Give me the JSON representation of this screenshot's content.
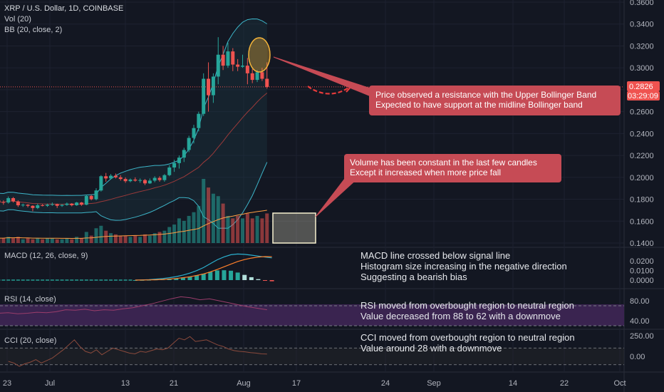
{
  "header": {
    "symbol_line": "XRP / U.S. Dollar, 1D, COINBASE",
    "vol_label": "Vol (20)",
    "bb_label": "BB (20, close, 2)"
  },
  "price_badges": {
    "last_price": "0.2826",
    "countdown": "03:29:09"
  },
  "colors": {
    "background": "#131722",
    "up": "#26a69a",
    "down": "#ef5350",
    "bb_band": "#3db5c9",
    "bb_basis": "#9b3a3a",
    "annotation_box": "#c64b55",
    "highlight_ellipse": "#f4b43a",
    "highlight_rect": "#f8f1d0",
    "macd_line": "#2bb0cf",
    "signal_line": "#ff7f2a",
    "rsi_line": "#9b3d6b",
    "rsi_band": "#3a2450",
    "cci_line": "#8b4a3c"
  },
  "annotations": {
    "resistance": {
      "line1": "Price observed a resistance with the Upper Bollinger Band",
      "line2": "Expected to have support at the midline Bollinger band"
    },
    "volume": {
      "line1": "Volume has been constant in the last few candles",
      "line2": "Except it increased when more price fall"
    }
  },
  "panes": {
    "macd": {
      "label": "MACD (12, 26, close, 9)",
      "note_lines": [
        "MACD line crossed below signal line",
        "Histogram size increasing in the negative direction",
        "Suggesting a bearish bias"
      ]
    },
    "rsi": {
      "label": "RSI (14, close)",
      "note_lines": [
        "RSI moved from overbought region to neutral region",
        "Value decreased from 88 to 62 with a downmove"
      ]
    },
    "cci": {
      "label": "CCI (20, close)",
      "note_lines": [
        "CCI moved from overbought region to neutral region",
        "Value around 28 with a downmove"
      ]
    }
  },
  "chart_data": [
    {
      "type": "candlestick",
      "title": "XRP / U.S. Dollar, 1D, COINBASE",
      "ylim": [
        0.14,
        0.36
      ],
      "y_ticks": [
        "0.1400",
        "0.1600",
        "0.1800",
        "0.2000",
        "0.2200",
        "0.2400",
        "0.2600",
        "0.2800",
        "0.3000",
        "0.3200",
        "0.3400",
        "0.3600"
      ],
      "x_ticks": [
        "23",
        "Jul",
        "13",
        "21",
        "Aug",
        "17",
        "24",
        "Sep",
        "14",
        "22",
        "Oct"
      ],
      "candles": [
        {
          "date": "2020-06-20",
          "o": 0.179,
          "h": 0.1805,
          "l": 0.177,
          "c": 0.1775
        },
        {
          "date": "2020-06-21",
          "o": 0.1775,
          "h": 0.179,
          "l": 0.175,
          "c": 0.177
        },
        {
          "date": "2020-06-22",
          "o": 0.177,
          "h": 0.1825,
          "l": 0.176,
          "c": 0.181
        },
        {
          "date": "2020-06-23",
          "o": 0.181,
          "h": 0.182,
          "l": 0.177,
          "c": 0.178
        },
        {
          "date": "2020-06-24",
          "o": 0.178,
          "h": 0.179,
          "l": 0.173,
          "c": 0.1745
        },
        {
          "date": "2020-06-25",
          "o": 0.1745,
          "h": 0.176,
          "l": 0.173,
          "c": 0.175
        },
        {
          "date": "2020-06-26",
          "o": 0.175,
          "h": 0.1755,
          "l": 0.1725,
          "c": 0.174
        },
        {
          "date": "2020-06-27",
          "o": 0.174,
          "h": 0.1745,
          "l": 0.169,
          "c": 0.172
        },
        {
          "date": "2020-06-28",
          "o": 0.172,
          "h": 0.176,
          "l": 0.171,
          "c": 0.1745
        },
        {
          "date": "2020-06-29",
          "o": 0.1745,
          "h": 0.1755,
          "l": 0.1735,
          "c": 0.174
        },
        {
          "date": "2020-06-30",
          "o": 0.174,
          "h": 0.176,
          "l": 0.173,
          "c": 0.175
        },
        {
          "date": "2020-07-01",
          "o": 0.175,
          "h": 0.177,
          "l": 0.174,
          "c": 0.1755
        },
        {
          "date": "2020-07-02",
          "o": 0.1755,
          "h": 0.176,
          "l": 0.172,
          "c": 0.174
        },
        {
          "date": "2020-07-03",
          "o": 0.174,
          "h": 0.1755,
          "l": 0.173,
          "c": 0.1748
        },
        {
          "date": "2020-07-04",
          "o": 0.1748,
          "h": 0.177,
          "l": 0.174,
          "c": 0.176
        },
        {
          "date": "2020-07-05",
          "o": 0.176,
          "h": 0.1765,
          "l": 0.1735,
          "c": 0.1745
        },
        {
          "date": "2020-07-06",
          "o": 0.1745,
          "h": 0.1775,
          "l": 0.174,
          "c": 0.177
        },
        {
          "date": "2020-07-07",
          "o": 0.177,
          "h": 0.1775,
          "l": 0.174,
          "c": 0.175
        },
        {
          "date": "2020-07-08",
          "o": 0.175,
          "h": 0.184,
          "l": 0.1745,
          "c": 0.183
        },
        {
          "date": "2020-07-09",
          "o": 0.183,
          "h": 0.184,
          "l": 0.179,
          "c": 0.18
        },
        {
          "date": "2020-07-10",
          "o": 0.18,
          "h": 0.19,
          "l": 0.179,
          "c": 0.188
        },
        {
          "date": "2020-07-11",
          "o": 0.188,
          "h": 0.202,
          "l": 0.187,
          "c": 0.201
        },
        {
          "date": "2020-07-12",
          "o": 0.201,
          "h": 0.204,
          "l": 0.196,
          "c": 0.199
        },
        {
          "date": "2020-07-13",
          "o": 0.199,
          "h": 0.203,
          "l": 0.198,
          "c": 0.2015
        },
        {
          "date": "2020-07-14",
          "o": 0.2015,
          "h": 0.2035,
          "l": 0.199,
          "c": 0.2
        },
        {
          "date": "2020-07-15",
          "o": 0.2,
          "h": 0.202,
          "l": 0.197,
          "c": 0.1985
        },
        {
          "date": "2020-07-16",
          "o": 0.1985,
          "h": 0.2,
          "l": 0.195,
          "c": 0.1965
        },
        {
          "date": "2020-07-17",
          "o": 0.1965,
          "h": 0.199,
          "l": 0.1955,
          "c": 0.198
        },
        {
          "date": "2020-07-18",
          "o": 0.198,
          "h": 0.2,
          "l": 0.196,
          "c": 0.197
        },
        {
          "date": "2020-07-19",
          "o": 0.197,
          "h": 0.199,
          "l": 0.195,
          "c": 0.1975
        },
        {
          "date": "2020-07-20",
          "o": 0.1975,
          "h": 0.1985,
          "l": 0.193,
          "c": 0.1945
        },
        {
          "date": "2020-07-21",
          "o": 0.1945,
          "h": 0.199,
          "l": 0.194,
          "c": 0.197
        },
        {
          "date": "2020-07-22",
          "o": 0.197,
          "h": 0.201,
          "l": 0.1955,
          "c": 0.1995
        },
        {
          "date": "2020-07-23",
          "o": 0.1995,
          "h": 0.201,
          "l": 0.196,
          "c": 0.1975
        },
        {
          "date": "2020-07-24",
          "o": 0.1975,
          "h": 0.203,
          "l": 0.196,
          "c": 0.202
        },
        {
          "date": "2020-07-25",
          "o": 0.202,
          "h": 0.211,
          "l": 0.201,
          "c": 0.209
        },
        {
          "date": "2020-07-26",
          "o": 0.209,
          "h": 0.216,
          "l": 0.205,
          "c": 0.213
        },
        {
          "date": "2020-07-27",
          "o": 0.213,
          "h": 0.22,
          "l": 0.208,
          "c": 0.218
        },
        {
          "date": "2020-07-28",
          "o": 0.218,
          "h": 0.227,
          "l": 0.214,
          "c": 0.225
        },
        {
          "date": "2020-07-29",
          "o": 0.225,
          "h": 0.238,
          "l": 0.223,
          "c": 0.236
        },
        {
          "date": "2020-07-30",
          "o": 0.236,
          "h": 0.248,
          "l": 0.231,
          "c": 0.245
        },
        {
          "date": "2020-07-31",
          "o": 0.245,
          "h": 0.26,
          "l": 0.242,
          "c": 0.258
        },
        {
          "date": "2020-08-01",
          "o": 0.258,
          "h": 0.295,
          "l": 0.256,
          "c": 0.29
        },
        {
          "date": "2020-08-02",
          "o": 0.29,
          "h": 0.305,
          "l": 0.26,
          "c": 0.275
        },
        {
          "date": "2020-08-03",
          "o": 0.275,
          "h": 0.295,
          "l": 0.268,
          "c": 0.292
        },
        {
          "date": "2020-08-04",
          "o": 0.292,
          "h": 0.328,
          "l": 0.285,
          "c": 0.312
        },
        {
          "date": "2020-08-05",
          "o": 0.312,
          "h": 0.32,
          "l": 0.298,
          "c": 0.302
        },
        {
          "date": "2020-08-06",
          "o": 0.302,
          "h": 0.323,
          "l": 0.3,
          "c": 0.315
        },
        {
          "date": "2020-08-07",
          "o": 0.315,
          "h": 0.318,
          "l": 0.297,
          "c": 0.303
        },
        {
          "date": "2020-08-08",
          "o": 0.303,
          "h": 0.308,
          "l": 0.297,
          "c": 0.301
        },
        {
          "date": "2020-08-09",
          "o": 0.301,
          "h": 0.312,
          "l": 0.3,
          "c": 0.302
        },
        {
          "date": "2020-08-10",
          "o": 0.302,
          "h": 0.309,
          "l": 0.285,
          "c": 0.295
        },
        {
          "date": "2020-08-11",
          "o": 0.295,
          "h": 0.299,
          "l": 0.286,
          "c": 0.289
        },
        {
          "date": "2020-08-12",
          "o": 0.289,
          "h": 0.298,
          "l": 0.287,
          "c": 0.296
        },
        {
          "date": "2020-08-13",
          "o": 0.296,
          "h": 0.3,
          "l": 0.288,
          "c": 0.29
        },
        {
          "date": "2020-08-14",
          "o": 0.29,
          "h": 0.305,
          "l": 0.281,
          "c": 0.2826
        }
      ],
      "bollinger": {
        "period": 20,
        "mult": 2,
        "upper_last": 0.338,
        "basis_last": 0.27,
        "lower_last": 0.202
      },
      "last_price": 0.2826
    },
    {
      "type": "bar",
      "title": "Vol (20)",
      "note": "volume histogram, relative units",
      "values": [
        4,
        4,
        5,
        4,
        5,
        3,
        4,
        3,
        4,
        3,
        4,
        4,
        3,
        3,
        4,
        3,
        5,
        4,
        9,
        6,
        12,
        14,
        10,
        8,
        7,
        6,
        6,
        5,
        6,
        5,
        7,
        6,
        8,
        9,
        10,
        13,
        15,
        20,
        18,
        22,
        25,
        30,
        52,
        45,
        40,
        38,
        32,
        22,
        20,
        22,
        20,
        24,
        20,
        22,
        20,
        24
      ]
    },
    {
      "type": "line",
      "title": "MACD (12, 26, close, 9)",
      "ylim": [
        -0.005,
        0.028
      ],
      "y_ticks": [
        "0.0000",
        "0.0100",
        "0.0200"
      ],
      "series": [
        {
          "name": "MACD",
          "values": [
            0,
            0.0002,
            0.0005,
            0.001,
            0.0016,
            0.0025,
            0.0036,
            0.0052,
            0.0072,
            0.0098,
            0.013,
            0.017,
            0.021,
            0.024,
            0.0262,
            0.027,
            0.0266,
            0.0258,
            0.0248,
            0.0238,
            0.023
          ]
        },
        {
          "name": "Signal",
          "values": [
            0,
            0.0001,
            0.0002,
            0.0004,
            0.0007,
            0.0011,
            0.0017,
            0.0025,
            0.0035,
            0.0048,
            0.0064,
            0.0085,
            0.011,
            0.0138,
            0.0165,
            0.0192,
            0.0212,
            0.0228,
            0.0238,
            0.0243,
            0.0242
          ]
        }
      ]
    },
    {
      "type": "line",
      "title": "RSI (14, close)",
      "ylim": [
        30,
        100
      ],
      "y_ticks": [
        "40.00",
        "80.00"
      ],
      "overbought": 70,
      "oversold": 30,
      "values": [
        55,
        56,
        54,
        55,
        57,
        56,
        58,
        62,
        61,
        63,
        60,
        62,
        61,
        64,
        66,
        70,
        74,
        79,
        84,
        88,
        86,
        82,
        84,
        80,
        76,
        72,
        68,
        65,
        62
      ]
    },
    {
      "type": "line",
      "title": "CCI (20, close)",
      "ylim": [
        -150,
        300
      ],
      "y_ticks": [
        "0.00",
        "250.00"
      ],
      "levels": [
        100,
        -100
      ],
      "values": [
        -60,
        -80,
        -120,
        -90,
        -70,
        -40,
        -80,
        -50,
        -20,
        30,
        80,
        140,
        200,
        120,
        60,
        40,
        80,
        20,
        60,
        100,
        80,
        60,
        40,
        30,
        60,
        50,
        70,
        90,
        80,
        100,
        160,
        220,
        200,
        240,
        180,
        190,
        200,
        170,
        140,
        120,
        90,
        70,
        60,
        55,
        45,
        40,
        30,
        28
      ]
    }
  ]
}
